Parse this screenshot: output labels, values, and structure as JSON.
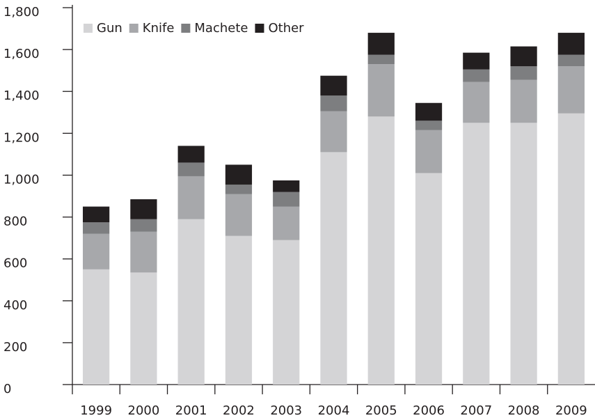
{
  "chart_data": {
    "type": "stacked_bar",
    "categories": [
      "1999",
      "2000",
      "2001",
      "2002",
      "2003",
      "2004",
      "2005",
      "2006",
      "2007",
      "2008",
      "2009"
    ],
    "series": [
      {
        "name": "Gun",
        "color": "#d4d4d6",
        "values": [
          550,
          535,
          790,
          710,
          690,
          1110,
          1280,
          1010,
          1250,
          1250,
          1295
        ]
      },
      {
        "name": "Knife",
        "color": "#a7a8ab",
        "values": [
          170,
          195,
          205,
          200,
          160,
          195,
          250,
          205,
          195,
          205,
          225
        ]
      },
      {
        "name": "Machete",
        "color": "#7d7e80",
        "values": [
          55,
          60,
          65,
          45,
          70,
          75,
          45,
          45,
          60,
          65,
          55
        ]
      },
      {
        "name": "Other",
        "color": "#231f20",
        "values": [
          75,
          95,
          80,
          95,
          55,
          95,
          105,
          85,
          80,
          95,
          105
        ]
      }
    ],
    "ylim": [
      0,
      1800
    ],
    "yticks": [
      0,
      200,
      400,
      600,
      800,
      {
        "value": 1000,
        "label": "1,000"
      },
      {
        "value": 1200,
        "label": "1,200"
      },
      {
        "value": 1400,
        "label": "1,400"
      },
      {
        "value": 1600,
        "label": "1,600"
      },
      {
        "value": 1800,
        "label": "1,800"
      }
    ],
    "legend": "upper left"
  }
}
